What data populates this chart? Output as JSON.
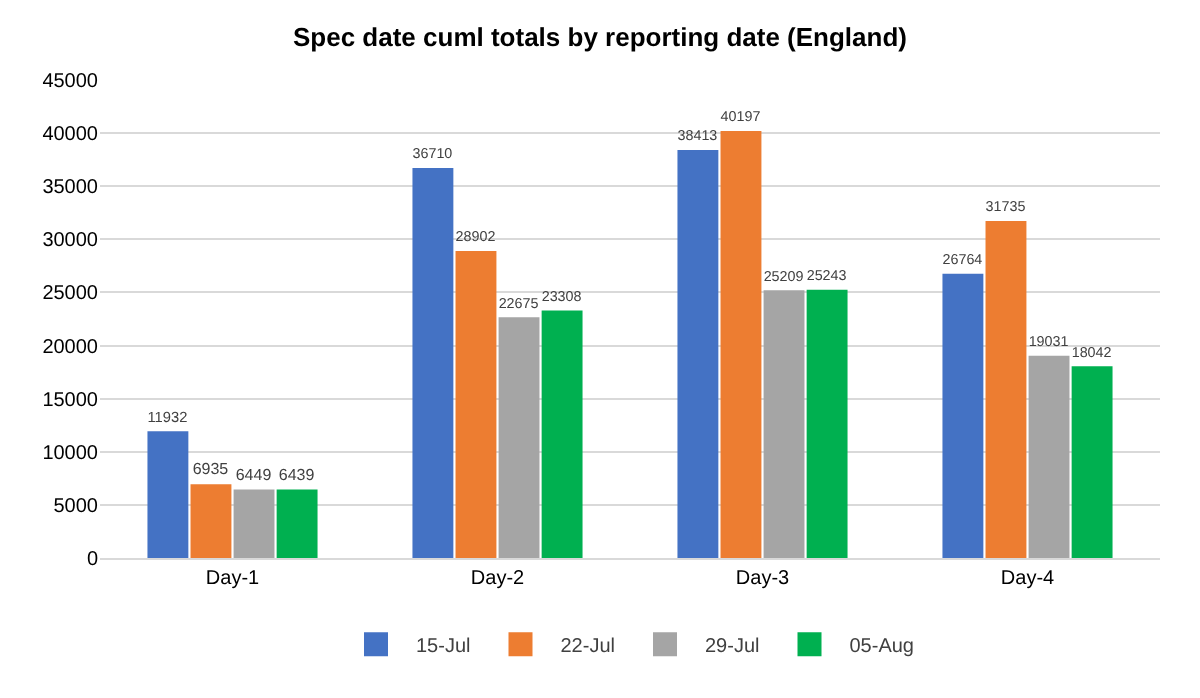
{
  "chart_data": {
    "type": "bar",
    "title": "Spec date cuml totals by reporting date (England)",
    "categories": [
      "Day-1",
      "Day-2",
      "Day-3",
      "Day-4"
    ],
    "series": [
      {
        "name": "15-Jul",
        "color": "#4472c4",
        "values": [
          11932,
          36710,
          38413,
          26764
        ]
      },
      {
        "name": "22-Jul",
        "color": "#ed7d31",
        "values": [
          6935,
          28902,
          40197,
          31735
        ]
      },
      {
        "name": "29-Jul",
        "color": "#a5a5a5",
        "values": [
          6449,
          22675,
          25209,
          19031
        ]
      },
      {
        "name": "05-Aug",
        "color": "#00b050",
        "values": [
          6439,
          23308,
          25243,
          18042
        ]
      }
    ],
    "ylim": [
      0,
      45000
    ],
    "yticks": [
      0,
      5000,
      10000,
      15000,
      20000,
      25000,
      30000,
      35000,
      40000,
      45000
    ],
    "grid": "y",
    "legend": "bottom",
    "data_labels": true
  }
}
